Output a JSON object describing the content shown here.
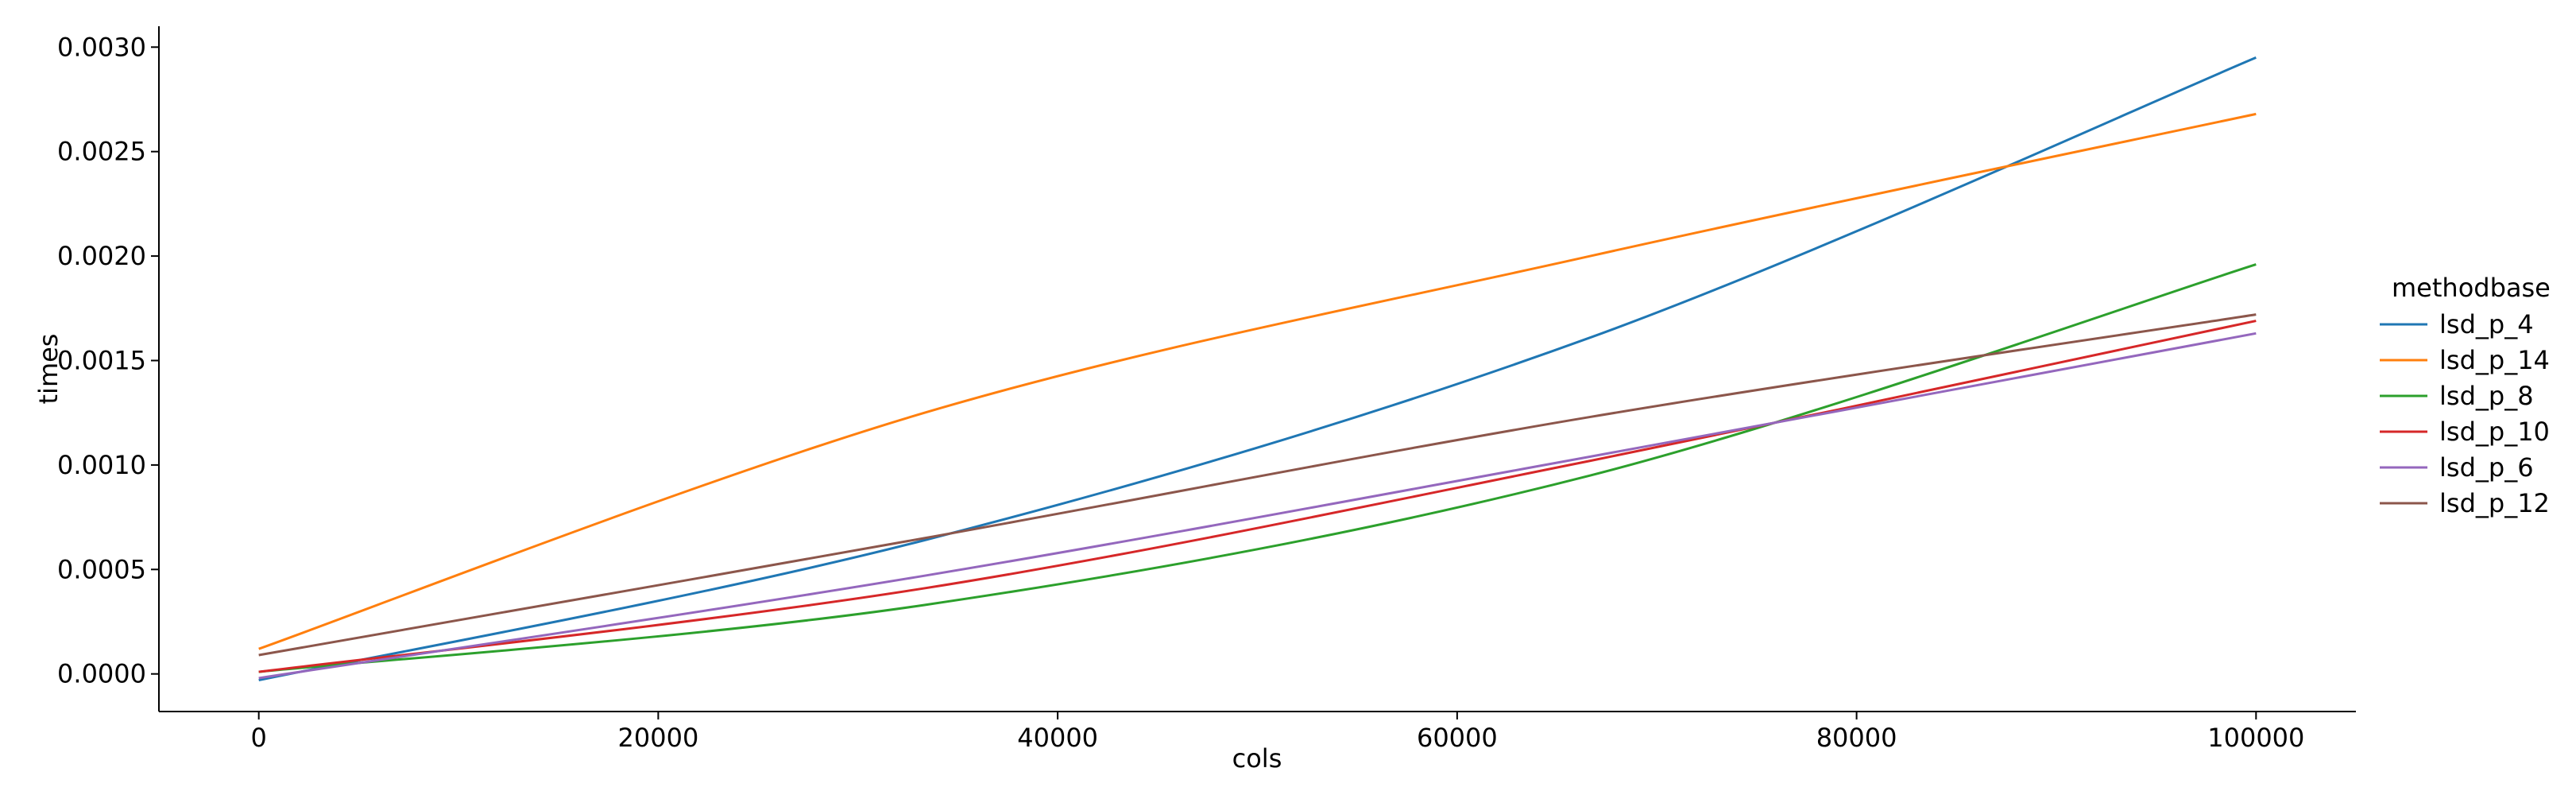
{
  "chart_data": {
    "type": "line",
    "title": "",
    "xlabel": "cols",
    "ylabel": "times",
    "xlim": [
      -5000,
      105000
    ],
    "ylim": [
      -0.00018,
      0.0031
    ],
    "xticks": [
      0,
      20000,
      40000,
      60000,
      80000,
      100000
    ],
    "xtick_labels": [
      "0",
      "20000",
      "40000",
      "60000",
      "80000",
      "100000"
    ],
    "yticks": [
      0.0,
      0.0005,
      0.001,
      0.0015,
      0.002,
      0.0025,
      0.003
    ],
    "ytick_labels": [
      "0.0000",
      "0.0005",
      "0.0010",
      "0.0015",
      "0.0020",
      "0.0025",
      "0.0030"
    ],
    "grid": false,
    "legend": {
      "title": "methodbase",
      "placement": "right"
    },
    "x": [
      0,
      33333,
      66667,
      100000
    ],
    "series": [
      {
        "name": "lsd_p_4",
        "color": "#1f77b4",
        "values": [
          -3e-05,
          0.00064,
          0.00161,
          0.00295
        ]
      },
      {
        "name": "lsd_p_14",
        "color": "#ff7f0e",
        "values": [
          0.00012,
          0.00125,
          0.002,
          0.00268
        ]
      },
      {
        "name": "lsd_p_8",
        "color": "#2ca02c",
        "values": [
          1e-05,
          0.00033,
          0.00095,
          0.00196
        ]
      },
      {
        "name": "lsd_p_10",
        "color": "#d62728",
        "values": [
          1e-05,
          0.00041,
          0.00102,
          0.00169
        ]
      },
      {
        "name": "lsd_p_6",
        "color": "#9467bd",
        "values": [
          -2e-05,
          0.00047,
          0.00104,
          0.00163
        ]
      },
      {
        "name": "lsd_p_12",
        "color": "#8c564b",
        "values": [
          9e-05,
          0.00065,
          0.00123,
          0.00172
        ]
      }
    ]
  }
}
